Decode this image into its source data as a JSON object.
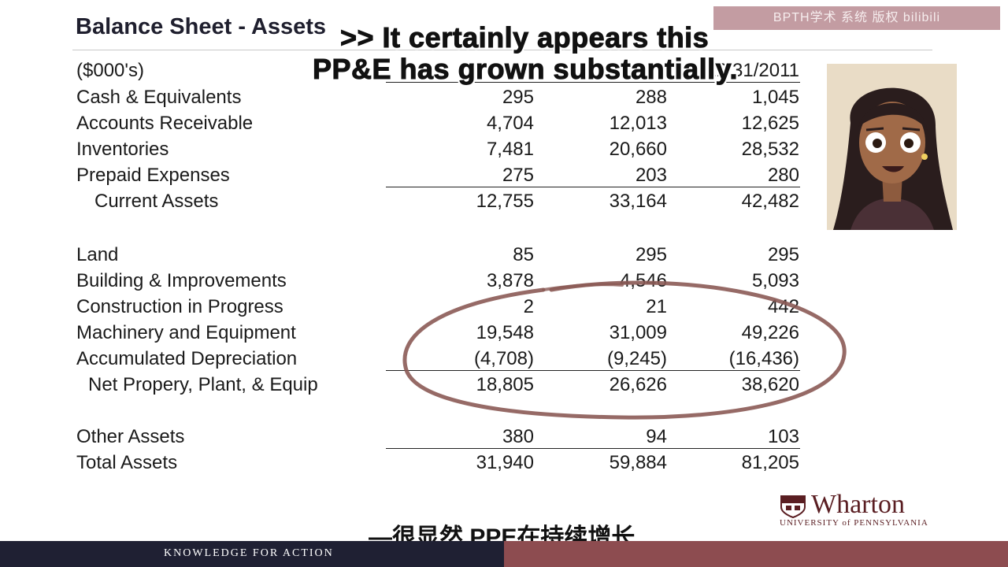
{
  "slide": {
    "title": "Balance Sheet - Assets",
    "unit_label": "($000's)",
    "column_header_last": "12/31/2011",
    "rows": [
      {
        "label": "Cash & Equivalents",
        "v": [
          "295",
          "288",
          "1,045"
        ]
      },
      {
        "label": "Accounts Receivable",
        "v": [
          "4,704",
          "12,013",
          "12,625"
        ]
      },
      {
        "label": "Inventories",
        "v": [
          "7,481",
          "20,660",
          "28,532"
        ]
      },
      {
        "label": "Prepaid Expenses",
        "v": [
          "275",
          "203",
          "280"
        ]
      },
      {
        "label": "Current Assets",
        "v": [
          "12,755",
          "33,164",
          "42,482"
        ]
      },
      {
        "label": "Land",
        "v": [
          "85",
          "295",
          "295"
        ]
      },
      {
        "label": "Building & Improvements",
        "v": [
          "3,878",
          "4,546",
          "5,093"
        ]
      },
      {
        "label": "Construction in Progress",
        "v": [
          "2",
          "21",
          "442"
        ]
      },
      {
        "label": "Machinery and Equipment",
        "v": [
          "19,548",
          "31,009",
          "49,226"
        ]
      },
      {
        "label": "Accumulated Depreciation",
        "v": [
          "(4,708)",
          "(9,245)",
          "(16,436)"
        ]
      },
      {
        "label": "Net Propery, Plant, & Equip",
        "v": [
          "18,805",
          "26,626",
          "38,620"
        ]
      },
      {
        "label": "Other Assets",
        "v": [
          "380",
          "94",
          "103"
        ]
      },
      {
        "label": "Total Assets",
        "v": [
          "31,940",
          "59,884",
          "81,205"
        ]
      }
    ]
  },
  "subtitles": {
    "en_line1": ">> It certainly appears this",
    "en_line2": "PP&E has grown substantially.",
    "cn": "—很显然 PPE在持续增长"
  },
  "watermark": "BPTH学术 系统 版权 bilibili",
  "logo": {
    "word": "Wharton",
    "sub": "UNIVERSITY of PENNSYLVANIA"
  },
  "footer": {
    "tagline": "KNOWLEDGE FOR ACTION"
  },
  "colors": {
    "footer_dark": "#1f2033",
    "footer_maroon": "#8d4c50",
    "circle_annotation": "#8b5a55",
    "brand": "#5a1e22"
  }
}
